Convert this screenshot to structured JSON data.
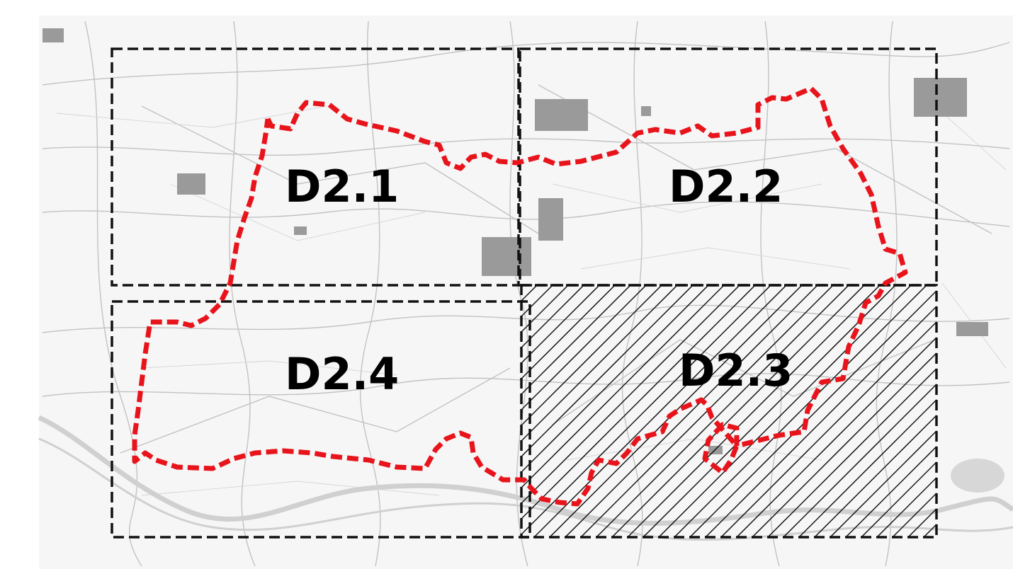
{
  "map": {
    "sectors": [
      {
        "id": "d2-1",
        "label": "D2.1",
        "hatched": false
      },
      {
        "id": "d2-2",
        "label": "D2.2",
        "hatched": false
      },
      {
        "id": "d2-3",
        "label": "D2.3",
        "hatched": true
      },
      {
        "id": "d2-4",
        "label": "D2.4",
        "hatched": false
      }
    ],
    "colors": {
      "boundary": "#e8141c",
      "grid": "#111111",
      "hatch": "#111111",
      "road": "#bdbdbd",
      "river": "#d4d4d4",
      "urban": "#9a9a9a",
      "basemap": "#f6f6f6"
    },
    "legend": "none"
  }
}
